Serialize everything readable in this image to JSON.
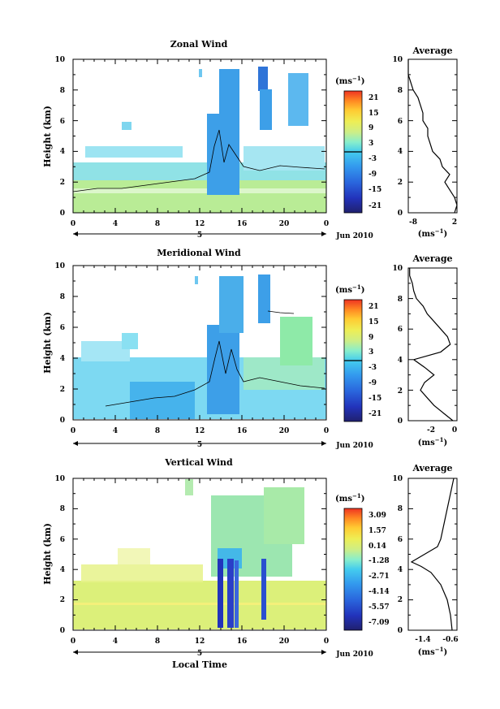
{
  "chart_data": [
    {
      "type": "heatmap",
      "title": "Zonal Wind",
      "ylabel": "Height (km)",
      "xlabel": "",
      "x_ticks": [
        "0",
        "4",
        "8",
        "12",
        "16",
        "20",
        "0"
      ],
      "y_ticks": [
        "0",
        "2",
        "4",
        "6",
        "8",
        "10"
      ],
      "ylim": [
        0,
        10
      ],
      "date_label": "5",
      "month_label": "Jun 2010",
      "colorbar": {
        "unit": "(ms",
        "unit_exp": "−1",
        "tick_labels": [
          "21",
          "15",
          "9",
          "3",
          "-3",
          "-9",
          "-15",
          "-21"
        ]
      },
      "profile": {
        "title": "Average",
        "x_ticks": [
          "-8",
          "2"
        ],
        "xlim": [
          -8,
          2
        ],
        "unit": "(ms",
        "unit_exp": "−1",
        "y_ticks": [
          "0",
          "2",
          "4",
          "6",
          "8",
          "10"
        ],
        "points": [
          [
            1.5,
            0
          ],
          [
            2,
            0.5
          ],
          [
            1.5,
            1
          ],
          [
            0.5,
            1.5
          ],
          [
            -0.5,
            2
          ],
          [
            0.5,
            2.5
          ],
          [
            -1,
            3
          ],
          [
            -1.5,
            3.5
          ],
          [
            -3,
            4
          ],
          [
            -3.5,
            4.5
          ],
          [
            -4,
            5
          ],
          [
            -4,
            5.5
          ],
          [
            -5,
            6
          ],
          [
            -5,
            6.5
          ],
          [
            -5.5,
            7
          ],
          [
            -6,
            7.5
          ],
          [
            -7,
            8
          ],
          [
            -7.5,
            8.5
          ],
          [
            -8,
            9
          ],
          [
            -8,
            10
          ]
        ]
      }
    },
    {
      "type": "heatmap",
      "title": "Meridional Wind",
      "ylabel": "Height (km)",
      "xlabel": "",
      "x_ticks": [
        "0",
        "4",
        "8",
        "12",
        "16",
        "20",
        "0"
      ],
      "y_ticks": [
        "0",
        "2",
        "4",
        "6",
        "8",
        "10"
      ],
      "ylim": [
        0,
        10
      ],
      "date_label": "5",
      "month_label": "Jun 2010",
      "colorbar": {
        "unit": "(ms",
        "unit_exp": "−1",
        "tick_labels": [
          "21",
          "15",
          "9",
          "3",
          "-3",
          "-9",
          "-15",
          "-21"
        ]
      },
      "profile": {
        "title": "Average",
        "x_ticks": [
          "-2",
          "0"
        ],
        "xlim": [
          -3.4,
          0.2
        ],
        "unit": "(ms",
        "unit_exp": "−1",
        "y_ticks": [
          "0",
          "2",
          "4",
          "6",
          "8",
          "10"
        ],
        "points": [
          [
            -0.1,
            0
          ],
          [
            -0.8,
            0.5
          ],
          [
            -1.5,
            1
          ],
          [
            -2,
            1.5
          ],
          [
            -2.5,
            2
          ],
          [
            -2.2,
            2.5
          ],
          [
            -1.5,
            3
          ],
          [
            -2.2,
            3.5
          ],
          [
            -3,
            4
          ],
          [
            -1,
            4.5
          ],
          [
            -0.3,
            5
          ],
          [
            -0.5,
            5.5
          ],
          [
            -1,
            6
          ],
          [
            -1.5,
            6.5
          ],
          [
            -2,
            7
          ],
          [
            -2.3,
            7.5
          ],
          [
            -2.8,
            8
          ],
          [
            -3,
            8.5
          ],
          [
            -3.1,
            9
          ],
          [
            -3.3,
            9.5
          ],
          [
            -3.3,
            10
          ]
        ]
      }
    },
    {
      "type": "heatmap",
      "title": "Vertical Wind",
      "ylabel": "Height (km)",
      "xlabel": "Local Time",
      "x_ticks": [
        "0",
        "4",
        "8",
        "12",
        "16",
        "20",
        "0"
      ],
      "y_ticks": [
        "0",
        "2",
        "4",
        "6",
        "8",
        "10"
      ],
      "ylim": [
        0,
        10
      ],
      "date_label": "5",
      "month_label": "Jun 2010",
      "colorbar": {
        "unit": "(ms",
        "unit_exp": "−1",
        "tick_labels": [
          "3.09",
          "1.57",
          "0.14",
          "-1.28",
          "-2.71",
          "-4.14",
          "-5.57",
          "-7.09"
        ]
      },
      "profile": {
        "title": "Average",
        "x_ticks": [
          "-1.4",
          "-0.6"
        ],
        "xlim": [
          -1.9,
          -0.4
        ],
        "unit": "(ms",
        "unit_exp": "−1",
        "y_ticks": [
          "0",
          "2",
          "4",
          "6",
          "8",
          "10"
        ],
        "points": [
          [
            -0.55,
            0
          ],
          [
            -0.6,
            1
          ],
          [
            -0.7,
            2
          ],
          [
            -0.9,
            3
          ],
          [
            -1.2,
            3.8
          ],
          [
            -1.5,
            4.2
          ],
          [
            -1.8,
            4.5
          ],
          [
            -1.4,
            5
          ],
          [
            -1,
            5.5
          ],
          [
            -0.9,
            6
          ],
          [
            -0.8,
            7
          ],
          [
            -0.7,
            8
          ],
          [
            -0.6,
            9
          ],
          [
            -0.5,
            10
          ]
        ]
      }
    }
  ],
  "colors": {
    "scale": [
      "#1f1f7a",
      "#2233bb",
      "#2a66dd",
      "#3399ee",
      "#44ccee",
      "#88eecc",
      "#ccee88",
      "#eeee55",
      "#ffcc33",
      "#ff8822",
      "#ee3322"
    ],
    "zonal_fill": "#8fe0f0",
    "zonal_low": "#b6ed90",
    "merid_fill": "#6fd3f5",
    "vert_low": "#dcf07a",
    "vert_upper": "#9ce6b0"
  }
}
